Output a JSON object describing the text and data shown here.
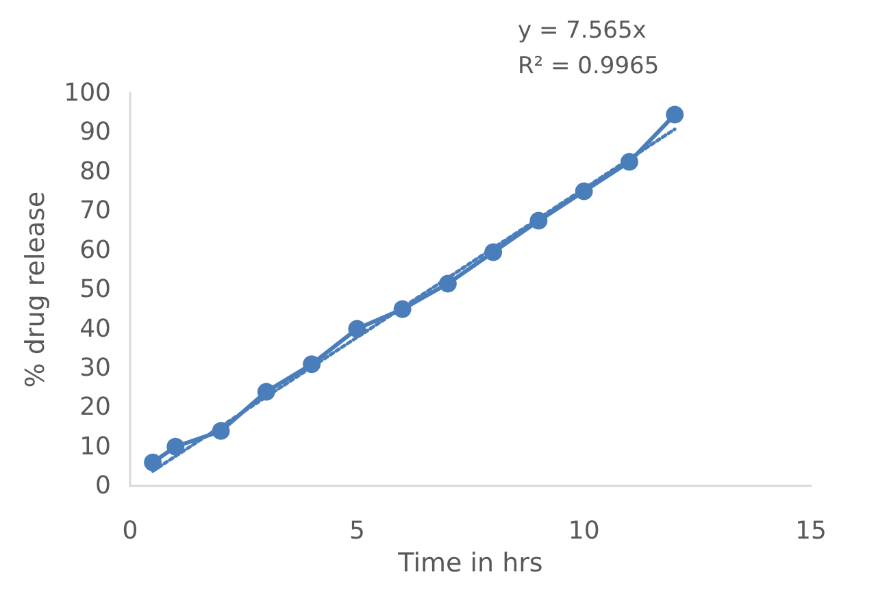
{
  "chart_data": {
    "type": "line",
    "xlabel": "Time in hrs",
    "ylabel": "% drug release",
    "annotations": [
      "y = 7.565x",
      "R² = 0.9965"
    ],
    "x": [
      0.5,
      1,
      2,
      3,
      4,
      5,
      6,
      7,
      8,
      9,
      10,
      11,
      12
    ],
    "series": [
      {
        "color": "#4a7ebb",
        "values": [
          6,
          10,
          14,
          24,
          31,
          40,
          45,
          51.5,
          59.5,
          67.5,
          75,
          82.5,
          94.5
        ],
        "marker": "circle",
        "line_style": "solid"
      },
      {
        "type": "line",
        "color": "#4a7ebb",
        "x": [
          0.5,
          12
        ],
        "values": [
          3.8,
          90.8
        ],
        "marker": "none",
        "line_style": "dotted"
      }
    ],
    "xlim": [
      0,
      15
    ],
    "xticks": [
      0,
      5,
      10,
      15
    ],
    "ylim": [
      0,
      100
    ],
    "yticks": [
      0,
      10,
      20,
      30,
      40,
      50,
      60,
      70,
      80,
      90,
      100
    ],
    "grid": false
  }
}
